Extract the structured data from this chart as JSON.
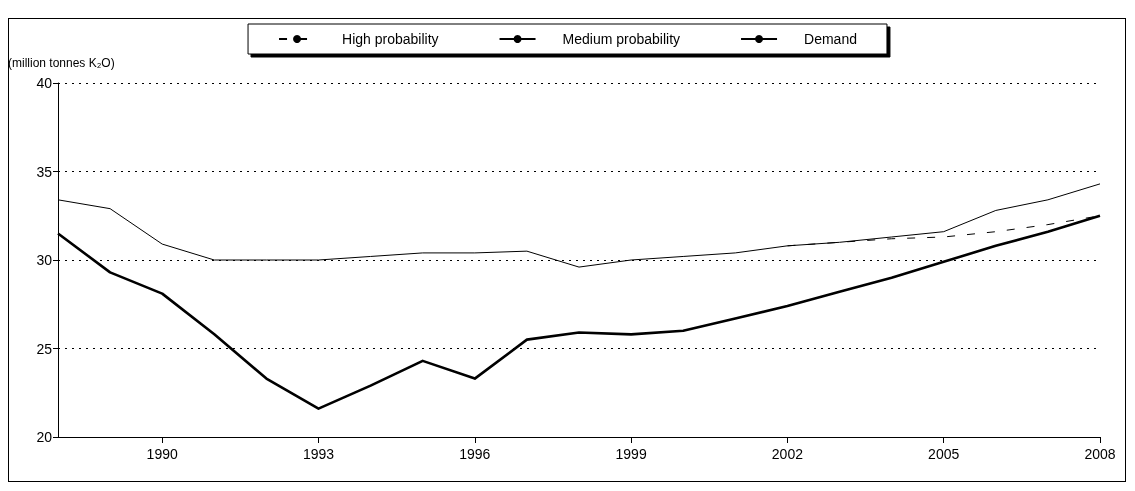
{
  "chart_data": {
    "type": "line",
    "ylabel": "(million tonnes K₂O)",
    "x": [
      1988,
      1989,
      1990,
      1991,
      1992,
      1993,
      1994,
      1995,
      1996,
      1997,
      1998,
      1999,
      2000,
      2001,
      2002,
      2003,
      2004,
      2005,
      2006,
      2007,
      2008
    ],
    "xlim": [
      1988,
      2008
    ],
    "xticks": [
      1990,
      1993,
      1996,
      1999,
      2002,
      2005,
      2008
    ],
    "ylim": [
      20,
      40
    ],
    "yticks": [
      20,
      25,
      30,
      35,
      40
    ],
    "grid": "y",
    "legend": "top",
    "marker": "none",
    "series": [
      {
        "name": "High probability",
        "color": "#000000",
        "line_style": "dashed",
        "x": [
          2002,
          2003,
          2004,
          2005,
          2006,
          2007,
          2008
        ],
        "values": [
          30.8,
          31.0,
          31.2,
          31.3,
          31.6,
          32.0,
          32.5
        ]
      },
      {
        "name": "Medium probability",
        "color": "#000000",
        "line_style": "solid",
        "values": [
          33.4,
          32.9,
          30.9,
          30.0,
          30.0,
          30.0,
          30.2,
          30.4,
          30.4,
          30.5,
          29.6,
          30.0,
          30.2,
          30.4,
          30.8,
          31.0,
          31.3,
          31.6,
          32.8,
          33.4,
          34.3
        ]
      },
      {
        "name": "Demand",
        "color": "#000000",
        "line_style": "solid",
        "values": [
          31.5,
          29.3,
          28.1,
          25.8,
          23.3,
          21.6,
          22.9,
          24.3,
          23.3,
          25.5,
          25.9,
          25.8,
          26.0,
          26.7,
          27.4,
          28.2,
          29.0,
          29.9,
          30.8,
          31.6,
          32.5
        ]
      }
    ]
  }
}
